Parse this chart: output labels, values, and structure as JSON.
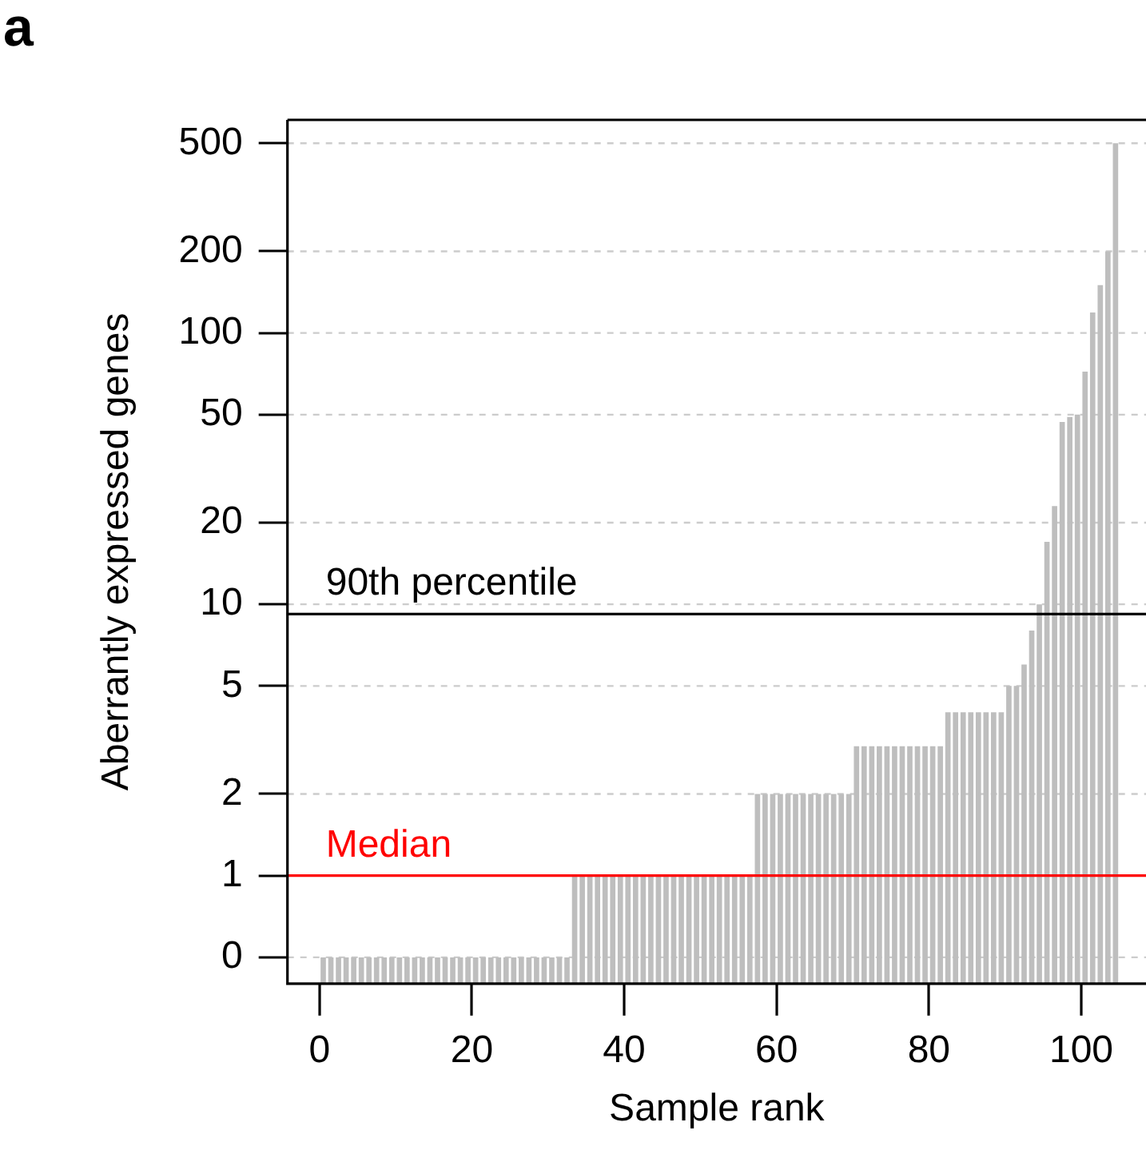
{
  "chart_data": {
    "type": "bar",
    "xlabel": "Sample rank",
    "ylabel": "Aberrantly expressed genes",
    "annotations": [
      "a"
    ],
    "x": [
      0.5,
      1.5,
      2.5,
      3.5,
      4.5,
      5.5,
      6.5,
      7.5,
      8.5,
      9.5,
      10.5,
      11.5,
      12.5,
      13.5,
      14.5,
      15.5,
      16.5,
      17.5,
      18.5,
      19.5,
      20.5,
      21.5,
      22.5,
      23.5,
      24.5,
      25.5,
      26.5,
      27.5,
      28.5,
      29.5,
      30.5,
      31.5,
      32.5,
      33.5,
      34.5,
      35.5,
      36.5,
      37.5,
      38.5,
      39.5,
      40.5,
      41.5,
      42.5,
      43.5,
      44.5,
      45.5,
      46.5,
      47.5,
      48.5,
      49.5,
      50.5,
      51.5,
      52.5,
      53.5,
      54.5,
      55.5,
      56.5,
      57.5,
      58.5,
      59.5,
      60.5,
      61.5,
      62.5,
      63.5,
      64.5,
      65.5,
      66.5,
      67.5,
      68.5,
      69.5,
      70.5,
      71.5,
      72.5,
      73.5,
      74.5,
      75.5,
      76.5,
      77.5,
      78.5,
      79.5,
      80.5,
      81.5,
      82.5,
      83.5,
      84.5,
      85.5,
      86.5,
      87.5,
      88.5,
      89.5,
      90.5,
      91.5,
      92.5,
      93.5,
      94.5,
      95.5,
      96.5,
      97.5,
      98.5,
      99.5,
      100.5,
      101.5,
      102.5,
      103.5,
      104.5
    ],
    "values": [
      0.5,
      0.5,
      0.5,
      0.5,
      0.5,
      0.5,
      0.5,
      0.5,
      0.5,
      0.5,
      0.5,
      0.5,
      0.5,
      0.5,
      0.5,
      0.5,
      0.5,
      0.5,
      0.5,
      0.5,
      0.5,
      0.5,
      0.5,
      0.5,
      0.5,
      0.5,
      0.5,
      0.5,
      0.5,
      0.5,
      0.5,
      0.5,
      0.5,
      1,
      1,
      1,
      1,
      1,
      1,
      1,
      1,
      1,
      1,
      1,
      1,
      1,
      1,
      1,
      1,
      1,
      1,
      1,
      1,
      1,
      1,
      1,
      1,
      2,
      2,
      2,
      2,
      2,
      2,
      2,
      2,
      2,
      2,
      2,
      2,
      2,
      3,
      3,
      3,
      3,
      3,
      3,
      3,
      3,
      3,
      3,
      3,
      3,
      4,
      4,
      4,
      4,
      4,
      4,
      4,
      4,
      5,
      5,
      6,
      8,
      10,
      17,
      23,
      47,
      49,
      50,
      72,
      119,
      150,
      200,
      500
    ],
    "color": "#bebebe",
    "log": true,
    "grid": "y",
    "legend": false,
    "xlim": [
      -4.2,
      108.5
    ],
    "xticks": [
      0,
      20,
      40,
      60,
      80,
      100
    ],
    "ylim": [
      0.4,
      610
    ],
    "yticks": [
      {
        "value": 0.5,
        "label": "0"
      },
      1,
      2,
      5,
      10,
      20,
      50,
      100,
      200,
      500
    ],
    "ref_lines": [
      {
        "axis": "y",
        "value": 1,
        "label": "Median",
        "color": "#ff0000"
      },
      {
        "axis": "y",
        "value": 9.2,
        "label": "90th percentile",
        "color": "#000000"
      }
    ]
  }
}
